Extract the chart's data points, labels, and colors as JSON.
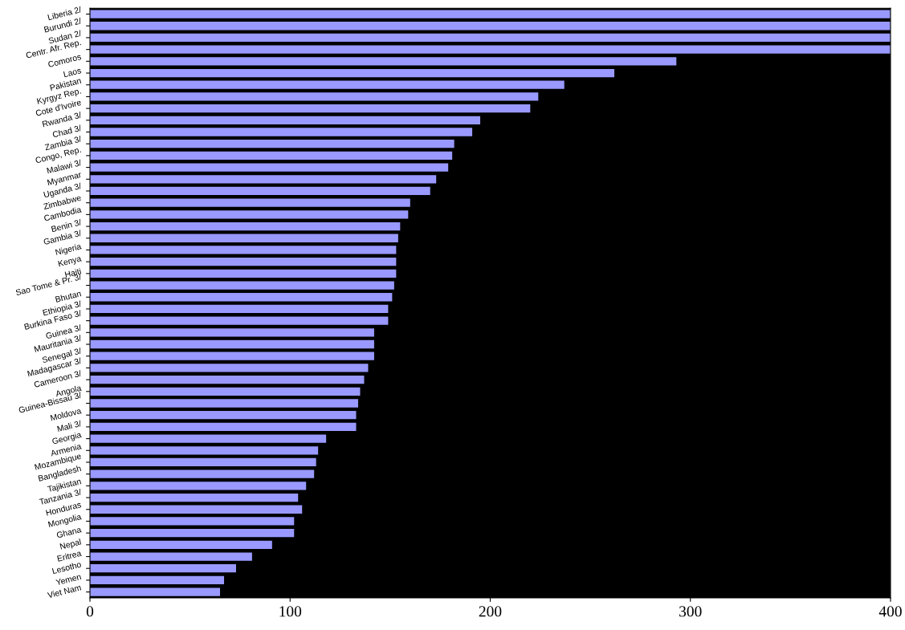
{
  "chart_data": {
    "type": "bar",
    "orientation": "horizontal",
    "categories": [
      "Liberia 2/",
      "Burundi 2/",
      "Sudan 2/",
      "Centr. Afr. Rep.",
      "Comoros",
      "Laos",
      "Pakistan",
      "Kyrgyz Rep.",
      "Cote d'Ivoire",
      "Rwanda 3/",
      "Chad 3/",
      "Zambia 3/",
      "Congo, Rep.",
      "Malawi 3/",
      "Myanmar",
      "Uganda 3/",
      "Zimbabwe",
      "Cambodia",
      "Benin 3/",
      "Gambia 3/",
      "Nigeria",
      "Kenya",
      "Haiti",
      "Sao Tome & Pr. 3/",
      "Bhutan",
      "Ethiopia 3/",
      "Burkina Faso 3/",
      "Guinea 3/",
      "Mauritania 3/",
      "Senegal 3/",
      "Madagascar 3/",
      "Cameroon 3/",
      "Angola",
      "Guinea-Bissau 3/",
      "Moldova",
      "Mali 3/",
      "Georgia",
      "Armenia",
      "Mozambique",
      "Bangladesh",
      "Tajikistan",
      "Tanzania 3/",
      "Honduras",
      "Mongolia",
      "Ghana",
      "Nepal",
      "Eritrea",
      "Lesotho",
      "Yemen",
      "Viet Nam"
    ],
    "values": [
      400,
      400,
      400,
      400,
      293,
      262,
      237,
      224,
      220,
      195,
      191,
      182,
      181,
      179,
      173,
      170,
      160,
      159,
      155,
      154,
      153,
      153,
      153,
      152,
      151,
      149,
      149,
      142,
      142,
      142,
      139,
      137,
      135,
      134,
      133,
      133,
      118,
      114,
      113,
      112,
      108,
      104,
      106,
      102,
      102,
      91,
      81,
      73,
      67,
      65
    ],
    "color": "#9999ff",
    "xlim": [
      0,
      400
    ],
    "xticks": [
      0,
      100,
      200,
      300,
      400
    ],
    "grid": false,
    "legend": false
  }
}
